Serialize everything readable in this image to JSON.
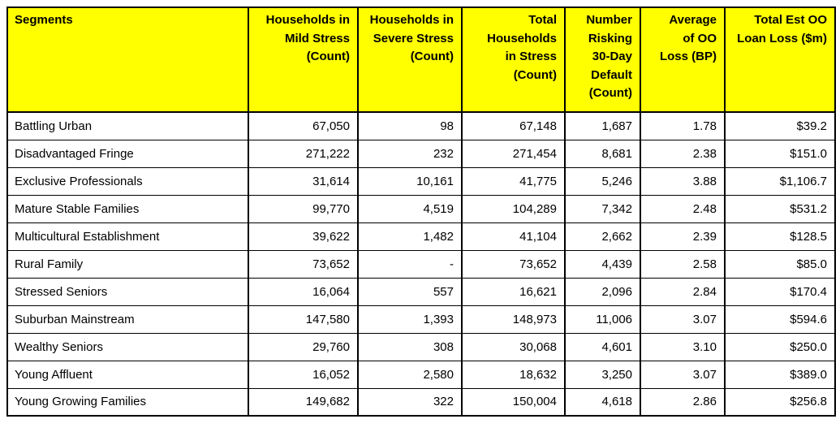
{
  "table": {
    "header": [
      "Segments",
      "Households in\nMild Stress\n(Count)",
      "Households in\nSevere Stress\n(Count)",
      "Total\nHouseholds\nin Stress\n(Count)",
      "Number\nRisking\n30-Day\nDefault\n(Count)",
      "Average\nof OO\nLoss (BP)",
      "Total Est OO\nLoan Loss ($m)"
    ],
    "rows": [
      [
        "Battling Urban",
        "67,050",
        "98",
        "67,148",
        "1,687",
        "1.78",
        "$39.2"
      ],
      [
        "Disadvantaged Fringe",
        "271,222",
        "232",
        "271,454",
        "8,681",
        "2.38",
        "$151.0"
      ],
      [
        "Exclusive Professionals",
        "31,614",
        "10,161",
        "41,775",
        "5,246",
        "3.88",
        "$1,106.7"
      ],
      [
        "Mature Stable Families",
        "99,770",
        "4,519",
        "104,289",
        "7,342",
        "2.48",
        "$531.2"
      ],
      [
        "Multicultural Establishment",
        "39,622",
        "1,482",
        "41,104",
        "2,662",
        "2.39",
        "$128.5"
      ],
      [
        "Rural Family",
        "73,652",
        "-",
        "73,652",
        "4,439",
        "2.58",
        "$85.0"
      ],
      [
        "Stressed Seniors",
        "16,064",
        "557",
        "16,621",
        "2,096",
        "2.84",
        "$170.4"
      ],
      [
        "Suburban Mainstream",
        "147,580",
        "1,393",
        "148,973",
        "11,006",
        "3.07",
        "$594.6"
      ],
      [
        "Wealthy Seniors",
        "29,760",
        "308",
        "30,068",
        "4,601",
        "3.10",
        "$250.0"
      ],
      [
        "Young Affluent",
        "16,052",
        "2,580",
        "18,632",
        "3,250",
        "3.07",
        "$389.0"
      ],
      [
        "Young Growing Families",
        "149,682",
        "322",
        "150,004",
        "4,618",
        "2.86",
        "$256.8"
      ]
    ],
    "colors": {
      "header_bg": "#FFFF00",
      "header_text": "#000000",
      "border": "#000000",
      "row_bg": "#FFFFFF"
    }
  },
  "chart_data": {
    "type": "table",
    "categories": [
      "Battling Urban",
      "Disadvantaged Fringe",
      "Exclusive Professionals",
      "Mature Stable Families",
      "Multicultural Establishment",
      "Rural Family",
      "Stressed Seniors",
      "Suburban Mainstream",
      "Wealthy Seniors",
      "Young Affluent",
      "Young Growing Families"
    ],
    "series": [
      {
        "name": "Households in Mild Stress (Count)",
        "values": [
          67050,
          271222,
          31614,
          99770,
          39622,
          73652,
          16064,
          147580,
          29760,
          16052,
          149682
        ]
      },
      {
        "name": "Households in Severe Stress (Count)",
        "values": [
          98,
          232,
          10161,
          4519,
          1482,
          null,
          557,
          1393,
          308,
          2580,
          322
        ]
      },
      {
        "name": "Total Households in Stress (Count)",
        "values": [
          67148,
          271454,
          41775,
          104289,
          41104,
          73652,
          16621,
          148973,
          30068,
          18632,
          150004
        ]
      },
      {
        "name": "Number Risking 30-Day Default (Count)",
        "values": [
          1687,
          8681,
          5246,
          7342,
          2662,
          4439,
          2096,
          11006,
          4601,
          3250,
          4618
        ]
      },
      {
        "name": "Average of OO Loss (BP)",
        "values": [
          1.78,
          2.38,
          3.88,
          2.48,
          2.39,
          2.58,
          2.84,
          3.07,
          3.1,
          3.07,
          2.86
        ]
      },
      {
        "name": "Total Est OO Loan Loss ($m)",
        "values": [
          39.2,
          151.0,
          1106.7,
          531.2,
          128.5,
          85.0,
          170.4,
          594.6,
          250.0,
          389.0,
          256.8
        ]
      }
    ]
  }
}
